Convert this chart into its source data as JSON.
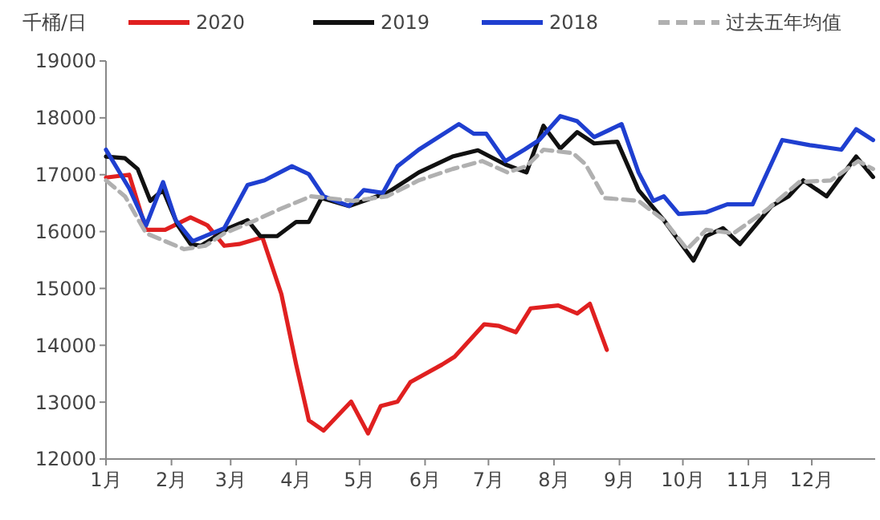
{
  "chart_data": {
    "type": "line",
    "ylabel": "千桶/日",
    "xlim": [
      "--01-01",
      "--12-31"
    ],
    "xticks": [
      {
        "value": "--01-01",
        "label": "1月"
      },
      {
        "value": "--02-01",
        "label": "2月"
      },
      {
        "value": "--03-01",
        "label": "3月"
      },
      {
        "value": "--04-01",
        "label": "4月"
      },
      {
        "value": "--05-01",
        "label": "5月"
      },
      {
        "value": "--06-01",
        "label": "6月"
      },
      {
        "value": "--07-01",
        "label": "7月"
      },
      {
        "value": "--08-01",
        "label": "8月"
      },
      {
        "value": "--09-01",
        "label": "9月"
      },
      {
        "value": "--10-01",
        "label": "10月"
      },
      {
        "value": "--11-01",
        "label": "11月"
      },
      {
        "value": "--12-01",
        "label": "12月"
      }
    ],
    "ylim": [
      12000,
      19000
    ],
    "yticks": [
      12000,
      13000,
      14000,
      15000,
      16000,
      17000,
      18000,
      19000
    ],
    "grid": false,
    "legend": "top",
    "marker": "none",
    "series": [
      {
        "name": "2020",
        "color": "#e02020",
        "line_style": "solid",
        "x": [
          "--01-01",
          "--01-12",
          "--01-20",
          "--01-29",
          "--02-10",
          "--02-18",
          "--02-26",
          "--03-05",
          "--03-16",
          "--03-25",
          "--04-01",
          "--04-07",
          "--04-14",
          "--04-27",
          "--05-05",
          "--05-11",
          "--05-19",
          "--05-25",
          "--06-09",
          "--06-15",
          "--06-29",
          "--07-06",
          "--07-14",
          "--07-21",
          "--08-03",
          "--08-12",
          "--08-18",
          "--08-26"
        ],
        "values": [
          16950,
          17000,
          16030,
          16030,
          16250,
          16110,
          15750,
          15780,
          15900,
          14900,
          13660,
          12680,
          12500,
          13010,
          12450,
          12930,
          13010,
          13350,
          13660,
          13800,
          14370,
          14340,
          14230,
          14650,
          14700,
          14560,
          14730,
          13920
        ]
      },
      {
        "name": "2019",
        "color": "#111111",
        "line_style": "solid",
        "x": [
          "--01-01",
          "--01-10",
          "--01-16",
          "--01-22",
          "--01-28",
          "--02-04",
          "--02-10",
          "--02-15",
          "--02-28",
          "--03-09",
          "--03-15",
          "--03-23",
          "--04-01",
          "--04-07",
          "--04-13",
          "--04-26",
          "--05-14",
          "--05-29",
          "--06-14",
          "--06-26",
          "--07-09",
          "--07-19",
          "--07-27",
          "--08-04",
          "--08-12",
          "--08-20",
          "--08-31",
          "--09-10",
          "--09-22",
          "--10-06",
          "--10-12",
          "--10-20",
          "--10-28",
          "--11-12",
          "--11-20",
          "--11-27",
          "--12-08",
          "--12-22",
          "--12-30"
        ],
        "values": [
          17320,
          17290,
          17100,
          16540,
          16730,
          16110,
          15780,
          15750,
          16060,
          16200,
          15920,
          15920,
          16170,
          16170,
          16590,
          16450,
          16680,
          17040,
          17320,
          17430,
          17180,
          17040,
          17860,
          17460,
          17750,
          17550,
          17580,
          16730,
          16200,
          15490,
          15920,
          16060,
          15780,
          16450,
          16620,
          16900,
          16620,
          17320,
          16960
        ]
      },
      {
        "name": "2018",
        "color": "#1f3fd0",
        "line_style": "solid",
        "x": [
          "--01-01",
          "--01-12",
          "--01-20",
          "--01-28",
          "--02-03",
          "--02-11",
          "--02-26",
          "--03-09",
          "--03-17",
          "--03-30",
          "--04-07",
          "--04-14",
          "--04-26",
          "--05-03",
          "--05-12",
          "--05-19",
          "--05-29",
          "--06-17",
          "--06-24",
          "--06-30",
          "--07-09",
          "--07-18",
          "--07-25",
          "--08-04",
          "--08-12",
          "--08-20",
          "--09-02",
          "--09-10",
          "--09-17",
          "--09-22",
          "--09-29",
          "--10-12",
          "--10-22",
          "--11-03",
          "--11-17",
          "--11-30",
          "--12-15",
          "--12-22",
          "--12-30"
        ],
        "values": [
          17440,
          16760,
          16110,
          16870,
          16200,
          15830,
          16060,
          16820,
          16900,
          17150,
          17010,
          16620,
          16450,
          16730,
          16680,
          17150,
          17440,
          17890,
          17720,
          17720,
          17240,
          17440,
          17610,
          18030,
          17940,
          17660,
          17890,
          17040,
          16540,
          16620,
          16310,
          16340,
          16480,
          16480,
          17610,
          17520,
          17440,
          17800,
          17610
        ]
      },
      {
        "name": "过去五年均值",
        "color": "#b0b0b0",
        "line_style": "dashed",
        "x": [
          "--01-01",
          "--01-10",
          "--01-20",
          "--02-07",
          "--02-17",
          "--02-26",
          "--03-11",
          "--03-24",
          "--04-08",
          "--04-28",
          "--05-14",
          "--05-29",
          "--06-14",
          "--06-28",
          "--07-10",
          "--07-19",
          "--07-27",
          "--08-10",
          "--08-16",
          "--08-25",
          "--09-10",
          "--09-22",
          "--10-03",
          "--10-12",
          "--10-25",
          "--11-10",
          "--11-25",
          "--12-10",
          "--12-23",
          "--12-30"
        ],
        "values": [
          16900,
          16620,
          15970,
          15690,
          15750,
          15970,
          16170,
          16390,
          16620,
          16540,
          16620,
          16900,
          17100,
          17240,
          17040,
          17150,
          17440,
          17380,
          17180,
          16590,
          16540,
          16200,
          15690,
          16030,
          15970,
          16390,
          16870,
          16900,
          17240,
          17100
        ]
      }
    ]
  }
}
